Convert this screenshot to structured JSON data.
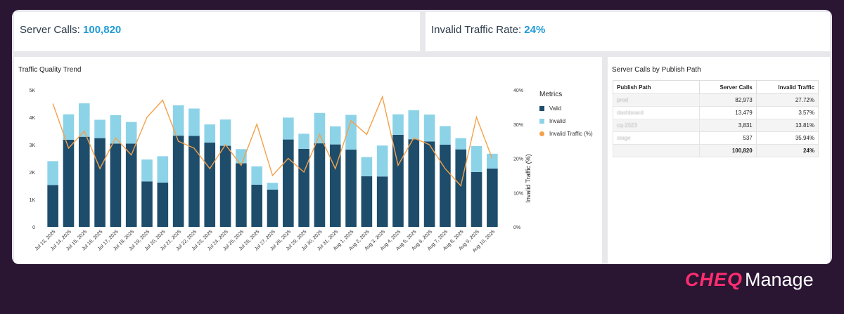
{
  "kpis": {
    "server_calls_label": "Server Calls:",
    "server_calls_value": "100,820",
    "invalid_rate_label": "Invalid Traffic Rate:",
    "invalid_rate_value": "24%"
  },
  "chart_panel": {
    "title": "Traffic Quality Trend"
  },
  "legend": {
    "title": "Metrics",
    "items": [
      {
        "label": "Valid",
        "color": "#1e4d6b"
      },
      {
        "label": "Invalid",
        "color": "#8dd3e8"
      },
      {
        "label": "Invalid Traffic (%)",
        "color": "#f4a14a"
      }
    ]
  },
  "chart_data": {
    "type": "bar",
    "title": "Traffic Quality Trend",
    "categories": [
      "Jul 13, 2025",
      "Jul 14, 2025",
      "Jul 15, 2025",
      "Jul 16, 2025",
      "Jul 17, 2025",
      "Jul 18, 2025",
      "Jul 19, 2025",
      "Jul 20, 2025",
      "Jul 21, 2025",
      "Jul 22, 2025",
      "Jul 23, 2025",
      "Jul 24, 2025",
      "Jul 25, 2025",
      "Jul 26, 2025",
      "Jul 27, 2025",
      "Jul 28, 2025",
      "Jul 29, 2025",
      "Jul 30, 2025",
      "Jul 31, 2025",
      "Aug 1, 2025",
      "Aug 2, 2025",
      "Aug 3, 2025",
      "Aug 4, 2025",
      "Aug 5, 2025",
      "Aug 6, 2025",
      "Aug 7, 2025",
      "Aug 8, 2025",
      "Aug 9, 2025",
      "Aug 10, 2025"
    ],
    "series": [
      {
        "name": "Valid",
        "axis": "left",
        "values": [
          1530,
          3180,
          3290,
          3240,
          3040,
          3040,
          1660,
          1620,
          3330,
          3320,
          3080,
          2960,
          2320,
          1540,
          1360,
          3190,
          2850,
          3050,
          3010,
          2820,
          1850,
          1840,
          3360,
          3200,
          3120,
          3000,
          2830,
          2000,
          2130
        ]
      },
      {
        "name": "Invalid",
        "axis": "left",
        "values": [
          870,
          930,
          1220,
          670,
          1040,
          790,
          800,
          960,
          1110,
          1000,
          660,
          960,
          520,
          670,
          250,
          800,
          550,
          1110,
          660,
          1270,
          700,
          1130,
          750,
          1060,
          980,
          680,
          410,
          950,
          540
        ]
      },
      {
        "name": "Invalid Traffic (%)",
        "axis": "right",
        "type": "line",
        "values": [
          36,
          23,
          28,
          17,
          26,
          21,
          32,
          37,
          25,
          23,
          17,
          24,
          18,
          30,
          15,
          20,
          16,
          27,
          17,
          31,
          27,
          38,
          18,
          26,
          24,
          17,
          12,
          32,
          20
        ]
      }
    ],
    "ylabel": "",
    "ylim": [
      0,
      5000
    ],
    "yticks": [
      "0",
      "1K",
      "2K",
      "3K",
      "4K",
      "5K"
    ],
    "y2label": "Invalid Traffic (%)",
    "y2lim": [
      0,
      40
    ],
    "y2ticks": [
      "0%",
      "10%",
      "20%",
      "30%",
      "40%"
    ],
    "grid": false
  },
  "table": {
    "title": "Server Calls by Publish Path",
    "columns": [
      "Publish Path",
      "Server Calls",
      "Invalid Traffic"
    ],
    "rows": [
      {
        "path": "prod",
        "calls": "82,973",
        "invalid": "27.72%"
      },
      {
        "path": "dashboard",
        "calls": "13,479",
        "invalid": "3.57%"
      },
      {
        "path": "cq-2023",
        "calls": "3,831",
        "invalid": "13.81%"
      },
      {
        "path": "stage",
        "calls": "537",
        "invalid": "35.94%"
      }
    ],
    "total": {
      "path": "",
      "calls": "100,820",
      "invalid": "24%"
    }
  },
  "brand": {
    "part1": "CHEQ",
    "part2": "Manage"
  }
}
